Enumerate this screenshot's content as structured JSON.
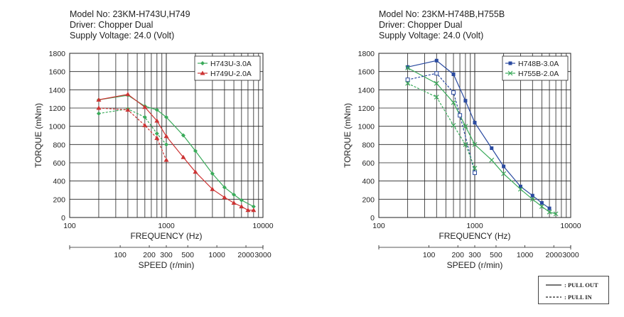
{
  "chart_data": [
    {
      "type": "line",
      "header": [
        "Model No: 23KM-H743U,H749",
        "Driver: Chopper Dual",
        "Supply Voltage: 24.0 (Volt)"
      ],
      "xlabel": "FREQUENCY (Hz)",
      "ylabel": "TORQUE (mNm)",
      "x_scale": "log",
      "xlim": [
        100,
        10000
      ],
      "ylim": [
        0,
        1800
      ],
      "x_ticks": [
        "100",
        "1000",
        "10000"
      ],
      "y_ticks": [
        "0",
        "200",
        "400",
        "600",
        "800",
        "1000",
        "1200",
        "1400",
        "1600",
        "1800"
      ],
      "speed_label": "SPEED (r/min)",
      "speed_ticks": [
        "100",
        "200",
        "300",
        "500",
        "1000",
        "2000",
        "3000"
      ],
      "legend_position": "top-right",
      "grid": true,
      "series": [
        {
          "name": "H743U-3.0A",
          "kind": "pull-out",
          "color": "#3aaa5a",
          "marker": "diamond",
          "x": [
            200,
            400,
            600,
            800,
            1000,
            1500,
            2000,
            3000,
            4000,
            5000,
            6000,
            8000
          ],
          "y": [
            1290,
            1340,
            1220,
            1180,
            1100,
            900,
            730,
            480,
            330,
            250,
            190,
            120
          ]
        },
        {
          "name": "H749U-2.0A",
          "kind": "pull-out",
          "color": "#cc3333",
          "marker": "triangle",
          "x": [
            200,
            400,
            600,
            800,
            1000,
            1500,
            2000,
            3000,
            4000,
            5000,
            6000,
            7000,
            8000
          ],
          "y": [
            1290,
            1350,
            1210,
            1060,
            890,
            660,
            500,
            310,
            220,
            160,
            120,
            80,
            80
          ]
        },
        {
          "name": "",
          "kind": "pull-in",
          "color": "#3aaa5a",
          "marker": "diamond",
          "x": [
            200,
            400,
            600,
            800,
            1000
          ],
          "y": [
            1140,
            1190,
            1100,
            920,
            800
          ]
        },
        {
          "name": "",
          "kind": "pull-in",
          "color": "#cc3333",
          "marker": "triangle",
          "x": [
            200,
            400,
            600,
            800,
            1000
          ],
          "y": [
            1200,
            1180,
            1010,
            870,
            630
          ]
        }
      ]
    },
    {
      "type": "line",
      "header": [
        "Model No: 23KM-H748B,H755B",
        "Driver: Chopper Dual",
        "Supply Voltage: 24.0 (Volt)"
      ],
      "xlabel": "FREQUENCY (Hz)",
      "ylabel": "TORQUE (mNm)",
      "x_scale": "log",
      "xlim": [
        100,
        10000
      ],
      "ylim": [
        0,
        1800
      ],
      "x_ticks": [
        "100",
        "1000",
        "10000"
      ],
      "y_ticks": [
        "0",
        "200",
        "400",
        "600",
        "800",
        "1000",
        "1200",
        "1400",
        "1600",
        "1800"
      ],
      "speed_label": "SPEED (r/min)",
      "speed_ticks": [
        "100",
        "200",
        "300",
        "500",
        "1000",
        "2000",
        "3000"
      ],
      "legend_position": "top-right",
      "grid": true,
      "series": [
        {
          "name": "H748B-3.0A",
          "kind": "pull-out",
          "color": "#2a4aa0",
          "marker": "square",
          "x": [
            200,
            400,
            600,
            800,
            1000,
            1500,
            2000,
            3000,
            4000,
            5000,
            6000
          ],
          "y": [
            1650,
            1720,
            1570,
            1280,
            1040,
            760,
            560,
            340,
            240,
            160,
            100
          ]
        },
        {
          "name": "H755B-2.0A",
          "kind": "pull-out",
          "color": "#3aaa5a",
          "marker": "x",
          "x": [
            200,
            400,
            600,
            800,
            1000,
            1500,
            2000,
            3000,
            4000,
            5000,
            6000,
            7000
          ],
          "y": [
            1640,
            1470,
            1260,
            1000,
            800,
            630,
            480,
            310,
            200,
            120,
            60,
            40
          ]
        },
        {
          "name": "",
          "kind": "pull-in",
          "color": "#2a4aa0",
          "marker": "square-open",
          "x": [
            200,
            400,
            600,
            700,
            1000
          ],
          "y": [
            1510,
            1580,
            1370,
            1120,
            490
          ]
        },
        {
          "name": "",
          "kind": "pull-in",
          "color": "#3aaa5a",
          "marker": "x",
          "x": [
            200,
            400,
            600,
            800,
            1000
          ],
          "y": [
            1470,
            1320,
            1010,
            800,
            540
          ]
        }
      ]
    }
  ],
  "key": {
    "pull_out": ": PULL OUT",
    "pull_in": ": PULL IN"
  }
}
